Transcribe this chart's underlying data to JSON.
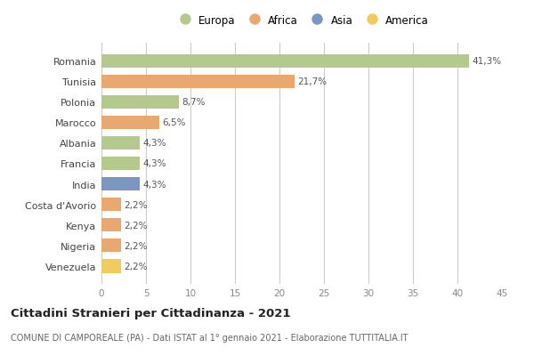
{
  "categories": [
    "Romania",
    "Tunisia",
    "Polonia",
    "Marocco",
    "Albania",
    "Francia",
    "India",
    "Costa d'Avorio",
    "Kenya",
    "Nigeria",
    "Venezuela"
  ],
  "values": [
    41.3,
    21.7,
    8.7,
    6.5,
    4.3,
    4.3,
    4.3,
    2.2,
    2.2,
    2.2,
    2.2
  ],
  "labels": [
    "41,3%",
    "21,7%",
    "8,7%",
    "6,5%",
    "4,3%",
    "4,3%",
    "4,3%",
    "2,2%",
    "2,2%",
    "2,2%",
    "2,2%"
  ],
  "colors": [
    "#b5c98e",
    "#e8a870",
    "#b5c98e",
    "#e8a870",
    "#b5c98e",
    "#b5c98e",
    "#7b96c0",
    "#e8a870",
    "#e8a870",
    "#e8a870",
    "#f0cc60"
  ],
  "legend_labels": [
    "Europa",
    "Africa",
    "Asia",
    "America"
  ],
  "legend_colors": [
    "#b5c98e",
    "#e8a870",
    "#7b96c0",
    "#f0cc60"
  ],
  "title": "Cittadini Stranieri per Cittadinanza - 2021",
  "subtitle": "COMUNE DI CAMPOREALE (PA) - Dati ISTAT al 1° gennaio 2021 - Elaborazione TUTTITALIA.IT",
  "xlim": [
    0,
    45
  ],
  "xticks": [
    0,
    5,
    10,
    15,
    20,
    25,
    30,
    35,
    40,
    45
  ],
  "background_color": "#ffffff",
  "grid_color": "#cccccc",
  "bar_height": 0.65
}
